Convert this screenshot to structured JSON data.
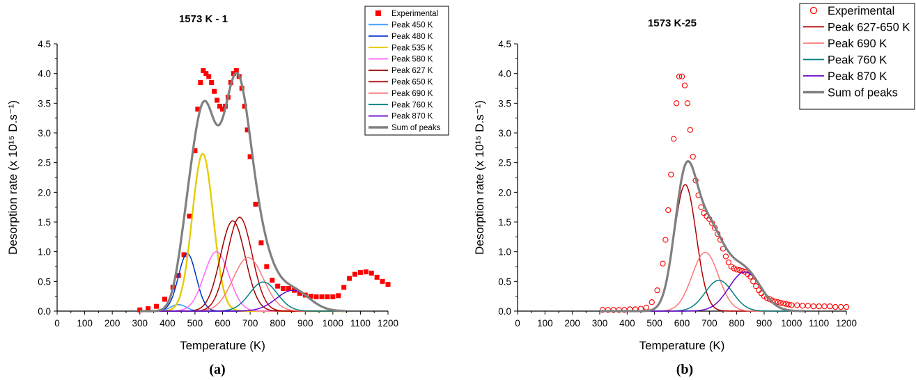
{
  "chart_data": [
    {
      "type": "line",
      "panel": "(a)",
      "title": "1573 K - 1",
      "xlabel": "Temperature (K)",
      "ylabel": "Desorption rate (x 10¹⁵ D.s⁻¹)",
      "xlim": [
        0,
        1200
      ],
      "ylim": [
        0,
        4.5
      ],
      "xticks": [
        0,
        100,
        200,
        300,
        400,
        500,
        600,
        700,
        800,
        900,
        1000,
        1100,
        1200
      ],
      "xtick_labels": [
        "0",
        "100",
        "200",
        "300",
        "400",
        "500",
        "600",
        "700",
        "800",
        "900",
        "1000",
        "1100",
        "1200"
      ],
      "yticks": [
        0,
        0.5,
        1.0,
        1.5,
        2.0,
        2.5,
        3.0,
        3.5,
        4.0,
        4.5
      ],
      "ytick_labels": [
        "0.0",
        "0.5",
        "1.0",
        "1.5",
        "2.0",
        "2.5",
        "3.0",
        "3.5",
        "4.0",
        "4.5"
      ],
      "grid": false,
      "legend_position": "top-right",
      "experimental": {
        "name": "Experimental",
        "color": "#ff0000",
        "marker": "filled-square",
        "x": [
          300,
          330,
          360,
          390,
          420,
          440,
          460,
          480,
          500,
          510,
          520,
          530,
          540,
          550,
          560,
          570,
          580,
          590,
          600,
          610,
          620,
          630,
          640,
          650,
          660,
          670,
          680,
          690,
          700,
          720,
          740,
          760,
          780,
          800,
          820,
          840,
          860,
          880,
          900,
          920,
          940,
          960,
          980,
          1000,
          1020,
          1040,
          1060,
          1080,
          1100,
          1120,
          1140,
          1160,
          1180,
          1200
        ],
        "y": [
          0.02,
          0.04,
          0.08,
          0.2,
          0.4,
          0.6,
          0.95,
          1.6,
          2.7,
          3.4,
          3.85,
          4.05,
          4.0,
          3.95,
          3.85,
          3.7,
          3.55,
          3.45,
          3.4,
          3.45,
          3.6,
          3.85,
          4.0,
          4.05,
          3.95,
          3.75,
          3.45,
          3.05,
          2.6,
          1.8,
          1.15,
          0.75,
          0.52,
          0.42,
          0.38,
          0.38,
          0.35,
          0.3,
          0.27,
          0.25,
          0.24,
          0.24,
          0.24,
          0.24,
          0.26,
          0.4,
          0.55,
          0.62,
          0.65,
          0.66,
          0.64,
          0.57,
          0.5,
          0.45
        ]
      },
      "peaks": [
        {
          "name": "Peak 450 K",
          "color": "#3399ff",
          "center": 440,
          "height": 0.11,
          "sigma": 28
        },
        {
          "name": "Peak 480 K",
          "color": "#0033cc",
          "center": 472,
          "height": 0.97,
          "sigma": 32
        },
        {
          "name": "Peak 535 K",
          "color": "#e6cc00",
          "center": 528,
          "height": 2.65,
          "sigma": 38
        },
        {
          "name": "Peak 580 K",
          "color": "#ff66ff",
          "center": 578,
          "height": 1.0,
          "sigma": 45
        },
        {
          "name": "Peak 627 K",
          "color": "#990000",
          "center": 637,
          "height": 1.52,
          "sigma": 45
        },
        {
          "name": "Peak 650 K",
          "color": "#b30000",
          "center": 662,
          "height": 1.58,
          "sigma": 45
        },
        {
          "name": "Peak 690 K",
          "color": "#ff7777",
          "center": 693,
          "height": 0.9,
          "sigma": 55
        },
        {
          "name": "Peak 760 K",
          "color": "#008080",
          "center": 748,
          "height": 0.49,
          "sigma": 50
        },
        {
          "name": "Peak 870 K",
          "color": "#6600cc",
          "center": 855,
          "height": 0.35,
          "sigma": 60
        }
      ],
      "sum": {
        "name": "Sum of peaks",
        "color": "#808080"
      },
      "legend": [
        {
          "label": "Experimental",
          "color": "#ff0000",
          "kind": "square"
        },
        {
          "label": "Peak 450 K",
          "color": "#3399ff",
          "kind": "line"
        },
        {
          "label": "Peak 480 K",
          "color": "#0033cc",
          "kind": "line"
        },
        {
          "label": "Peak 535 K",
          "color": "#e6cc00",
          "kind": "line"
        },
        {
          "label": "Peak 580 K",
          "color": "#ff66ff",
          "kind": "line"
        },
        {
          "label": "Peak 627 K",
          "color": "#990000",
          "kind": "line"
        },
        {
          "label": "Peak 650 K",
          "color": "#b30000",
          "kind": "line"
        },
        {
          "label": "Peak 690 K",
          "color": "#ff7777",
          "kind": "line"
        },
        {
          "label": "Peak 760 K",
          "color": "#008080",
          "kind": "line"
        },
        {
          "label": "Peak 870 K",
          "color": "#6600cc",
          "kind": "line"
        },
        {
          "label": "Sum of peaks",
          "color": "#808080",
          "kind": "thick"
        }
      ]
    },
    {
      "type": "line",
      "panel": "(b)",
      "title": "1573 K-25",
      "xlabel": "Temperature (K)",
      "ylabel": "Desorption rate (x 10¹⁵ D.s⁻¹)",
      "xlim": [
        0,
        1200
      ],
      "ylim": [
        0,
        4.5
      ],
      "xticks": [
        0,
        100,
        200,
        300,
        400,
        500,
        600,
        700,
        800,
        900,
        1000,
        1100,
        1200
      ],
      "xtick_labels": [
        "0",
        "100",
        "200",
        "300",
        "400",
        "500",
        "600",
        "700",
        "800",
        "900",
        "1000",
        "1100",
        "1200"
      ],
      "yticks": [
        0,
        0.5,
        1.0,
        1.5,
        2.0,
        2.5,
        3.0,
        3.5,
        4.0,
        4.5
      ],
      "ytick_labels": [
        "0.0",
        "0.5",
        "1.0",
        "1.5",
        "2.0",
        "2.5",
        "3.0",
        "3.5",
        "4.0",
        "4.5"
      ],
      "grid": false,
      "legend_position": "top-right",
      "experimental": {
        "name": "Experimental",
        "color": "#ff0000",
        "marker": "open-circle",
        "x": [
          310,
          330,
          350,
          370,
          390,
          410,
          430,
          450,
          470,
          490,
          510,
          530,
          540,
          550,
          560,
          570,
          580,
          590,
          600,
          610,
          620,
          630,
          640,
          650,
          660,
          670,
          680,
          690,
          700,
          710,
          720,
          730,
          740,
          750,
          760,
          770,
          780,
          790,
          800,
          810,
          820,
          830,
          840,
          850,
          860,
          870,
          880,
          890,
          900,
          910,
          920,
          930,
          940,
          950,
          960,
          970,
          980,
          990,
          1000,
          1020,
          1040,
          1060,
          1080,
          1100,
          1120,
          1140,
          1160,
          1180,
          1200
        ],
        "y": [
          0.02,
          0.02,
          0.02,
          0.02,
          0.02,
          0.03,
          0.03,
          0.04,
          0.06,
          0.15,
          0.35,
          0.8,
          1.2,
          1.7,
          2.3,
          2.9,
          3.5,
          3.95,
          3.95,
          3.8,
          3.5,
          3.05,
          2.6,
          2.2,
          1.95,
          1.75,
          1.65,
          1.6,
          1.55,
          1.48,
          1.4,
          1.3,
          1.2,
          1.05,
          0.92,
          0.82,
          0.75,
          0.72,
          0.7,
          0.69,
          0.68,
          0.66,
          0.62,
          0.58,
          0.5,
          0.42,
          0.35,
          0.3,
          0.25,
          0.22,
          0.2,
          0.18,
          0.16,
          0.15,
          0.14,
          0.13,
          0.12,
          0.11,
          0.1,
          0.1,
          0.09,
          0.09,
          0.08,
          0.08,
          0.08,
          0.08,
          0.07,
          0.07,
          0.07
        ]
      },
      "peaks": [
        {
          "name": "Peak 627-650 K",
          "color": "#b30000",
          "center": 612,
          "height": 2.13,
          "sigma": 40
        },
        {
          "name": "Peak 690 K",
          "color": "#ff7777",
          "center": 685,
          "height": 0.99,
          "sigma": 48
        },
        {
          "name": "Peak 760 K",
          "color": "#008080",
          "center": 735,
          "height": 0.52,
          "sigma": 50
        },
        {
          "name": "Peak 870 K",
          "color": "#6600cc",
          "center": 830,
          "height": 0.66,
          "sigma": 58
        }
      ],
      "sum": {
        "name": "Sum of peaks",
        "color": "#808080"
      },
      "legend": [
        {
          "label": "Experimental",
          "color": "#ff0000",
          "kind": "circle"
        },
        {
          "label": "Peak 627-650 K",
          "color": "#b30000",
          "kind": "line"
        },
        {
          "label": "Peak 690 K",
          "color": "#ff7777",
          "kind": "line"
        },
        {
          "label": "Peak 760 K",
          "color": "#008080",
          "kind": "line"
        },
        {
          "label": "Peak 870 K",
          "color": "#6600cc",
          "kind": "line"
        },
        {
          "label": "Sum of peaks",
          "color": "#808080",
          "kind": "thick"
        }
      ]
    }
  ]
}
